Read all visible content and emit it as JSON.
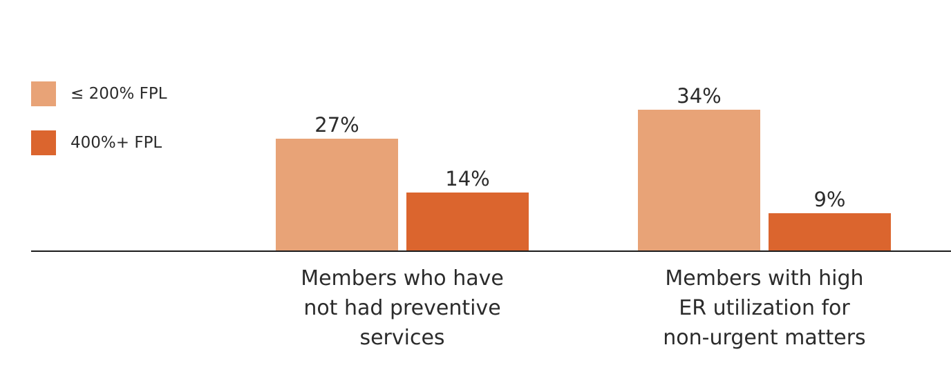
{
  "chart_data": {
    "type": "bar",
    "categories": [
      [
        "Members who have",
        "not had preventive",
        "services"
      ],
      [
        "Members with high",
        "ER utilization for",
        "non-urgent matters"
      ]
    ],
    "series": [
      {
        "name": "≤ 200% FPL",
        "values": [
          27,
          34
        ],
        "labels": [
          "27%",
          "34%"
        ],
        "color": "#e8a377"
      },
      {
        "name": "400%+ FPL",
        "values": [
          14,
          9
        ],
        "labels": [
          "14%",
          "9%"
        ],
        "color": "#db652e"
      }
    ],
    "ylim": [
      0,
      100
    ],
    "legend_position": "top-left",
    "grid": false
  }
}
